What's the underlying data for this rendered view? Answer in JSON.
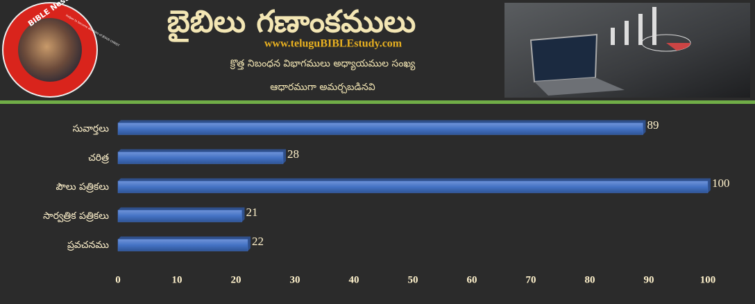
{
  "header": {
    "title": "బైబిలు గణాంకములు",
    "website": "www.teluguBIBLEstudy.com",
    "subtitle_lines": [
      "క్రొత్త నిబంధన విభాగములు అధ్యాయముల సంఖ్య",
      "ఆధారముగా అమర్చబడినవి"
    ],
    "logo_name": "BIBLE Nestam",
    "logo_tagline": "Helper to become disciples of JESUS CHRIST"
  },
  "chart_data": {
    "type": "barh",
    "categories": [
      "సువార్తలు",
      "చరిత్ర",
      "పౌలు పత్రికలు",
      "సార్వత్రిక పత్రికలు",
      "ప్రవచనము"
    ],
    "values": [
      89,
      28,
      100,
      21,
      22
    ],
    "color": "#4472c4",
    "xlim": [
      0,
      100
    ],
    "xticks": [
      0,
      10,
      20,
      30,
      40,
      50,
      60,
      70,
      80,
      90,
      100
    ],
    "grid": false
  }
}
